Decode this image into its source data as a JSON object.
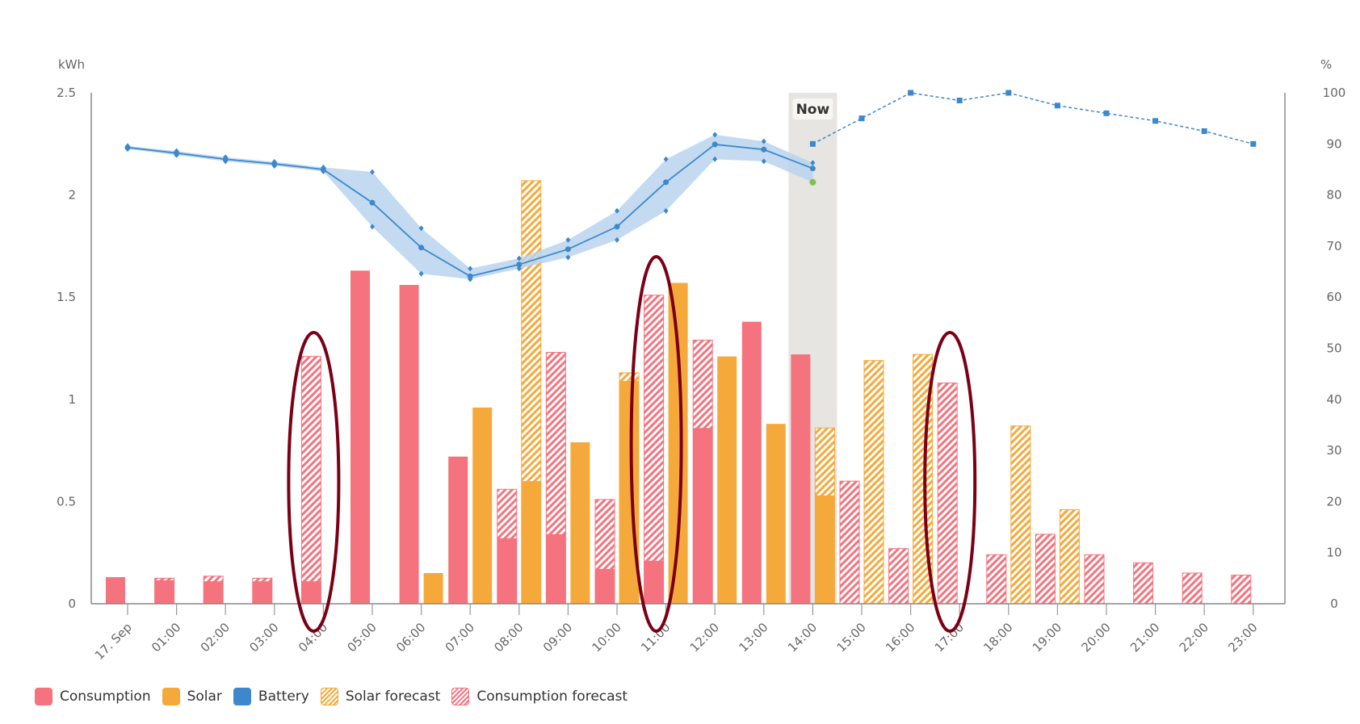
{
  "chart_data": {
    "type": "bar",
    "title": "",
    "y_left_label": "kWh",
    "y_right_label": "%",
    "y_left_range": [
      0,
      2.5
    ],
    "y_left_ticks": [
      "0",
      "0.5",
      "1",
      "1.5",
      "2",
      "2.5"
    ],
    "y_right_range": [
      0,
      100
    ],
    "y_right_ticks": [
      "0",
      "10",
      "20",
      "30",
      "40",
      "50",
      "60",
      "70",
      "80",
      "90",
      "100"
    ],
    "categories": [
      "17. Sep",
      "01:00",
      "02:00",
      "03:00",
      "04:00",
      "05:00",
      "06:00",
      "07:00",
      "08:00",
      "09:00",
      "10:00",
      "11:00",
      "12:00",
      "13:00",
      "14:00",
      "15:00",
      "16:00",
      "17:00",
      "18:00",
      "19:00",
      "20:00",
      "21:00",
      "22:00",
      "23:00"
    ],
    "now_category": "14:00",
    "now_label": "Now",
    "grid": false,
    "legend_position": "bottom-left",
    "series": [
      {
        "name": "Consumption",
        "axis": "left",
        "kind": "bar",
        "values": [
          0.13,
          0.115,
          0.11,
          0.11,
          0.11,
          1.63,
          1.56,
          0.72,
          0.32,
          0.34,
          0.17,
          0.21,
          0.86,
          1.38,
          1.22,
          null,
          null,
          null,
          null,
          null,
          null,
          null,
          null,
          null
        ]
      },
      {
        "name": "Consumption forecast",
        "axis": "left",
        "kind": "hatched-bar",
        "values": [
          null,
          0.125,
          0.135,
          0.125,
          1.21,
          null,
          null,
          null,
          0.56,
          1.23,
          0.51,
          1.51,
          1.29,
          null,
          null,
          0.6,
          0.27,
          1.08,
          0.24,
          0.34,
          0.24,
          0.2,
          0.15,
          0.14
        ]
      },
      {
        "name": "Solar",
        "axis": "left",
        "kind": "bar",
        "values": [
          null,
          null,
          null,
          null,
          null,
          null,
          0.15,
          0.96,
          0.6,
          0.79,
          1.09,
          1.57,
          1.21,
          0.88,
          0.53,
          null,
          null,
          null,
          null,
          null,
          null,
          null,
          null,
          null
        ]
      },
      {
        "name": "Solar forecast",
        "axis": "left",
        "kind": "hatched-bar",
        "values": [
          null,
          null,
          null,
          null,
          null,
          null,
          null,
          null,
          2.07,
          null,
          1.13,
          null,
          null,
          null,
          0.86,
          1.19,
          1.22,
          null,
          0.87,
          0.46,
          null,
          null,
          null,
          null
        ]
      },
      {
        "name": "Battery",
        "axis": "right",
        "kind": "line",
        "values": [
          89.3,
          88.2,
          87.0,
          86.1,
          85.0,
          78.5,
          69.7,
          64.1,
          66.4,
          69.4,
          73.8,
          82.5,
          89.9,
          88.9,
          85.2,
          null,
          null,
          null,
          null,
          null,
          null,
          null,
          null,
          null
        ],
        "range_max": [
          89.6,
          88.6,
          87.4,
          86.5,
          85.4,
          84.5,
          73.5,
          65.6,
          67.6,
          71.2,
          76.9,
          87.0,
          91.8,
          90.5,
          86.3,
          null,
          null,
          null,
          null,
          null,
          null,
          null,
          null,
          null
        ],
        "range_min": [
          89.0,
          87.8,
          86.6,
          85.7,
          84.6,
          73.8,
          64.6,
          63.5,
          65.6,
          67.8,
          71.2,
          76.9,
          87.0,
          86.6,
          82.5,
          null,
          null,
          null,
          null,
          null,
          null,
          null,
          null,
          null
        ]
      },
      {
        "name": "Battery forecast",
        "axis": "right",
        "kind": "dashed-line",
        "values": [
          null,
          null,
          null,
          null,
          null,
          null,
          null,
          null,
          null,
          null,
          null,
          null,
          null,
          null,
          90,
          95,
          100,
          98.5,
          100,
          97.5,
          96,
          94.5,
          92.5,
          90
        ]
      }
    ],
    "highlighted_categories": [
      "04:00",
      "11:00",
      "17:00"
    ]
  },
  "legend": {
    "items": [
      {
        "label": "Consumption",
        "color": "#f4737e",
        "style": "solid"
      },
      {
        "label": "Solar",
        "color": "#f5a93b",
        "style": "solid"
      },
      {
        "label": "Battery",
        "color": "#3d88cc",
        "style": "solid"
      },
      {
        "label": "Solar forecast",
        "color": "#f5a93b",
        "style": "hatched"
      },
      {
        "label": "Consumption forecast",
        "color": "#f4737e",
        "style": "hatched"
      }
    ]
  },
  "colors": {
    "consumption": "#f4737e",
    "solar": "#f5a93b",
    "battery": "#3d88cc",
    "battery_band": "#b8d4ee",
    "now_band": "#e6e5e1",
    "highlight_ellipse": "#7b0015",
    "current_soc_dot": "#7dc24b"
  }
}
